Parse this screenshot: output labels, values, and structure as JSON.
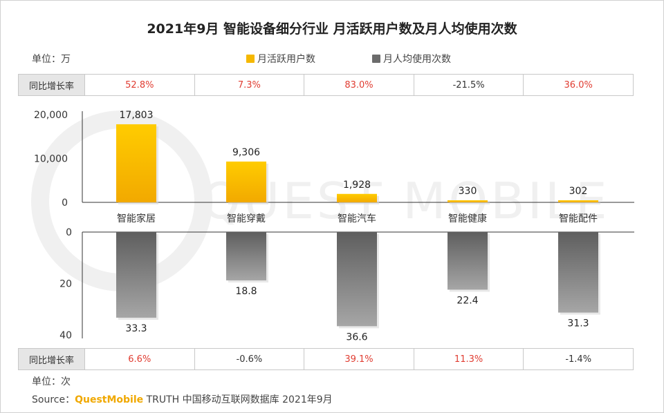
{
  "title": "2021年9月 智能设备细分行业 月活跃用户数及月人均使用次数",
  "unit_top": "单位：万",
  "unit_bottom": "单位：次",
  "legend": {
    "mau": "月活跃用户数",
    "usage": "月人均使用次数"
  },
  "yoy_label": "同比增长率",
  "yoy_top": [
    "52.8%",
    "7.3%",
    "83.0%",
    "-21.5%",
    "36.0%"
  ],
  "yoy_bottom": [
    "6.6%",
    "-0.6%",
    "39.1%",
    "11.3%",
    "-1.4%"
  ],
  "watermark": "QUEST MOBILE",
  "source": {
    "prefix": "Source：",
    "brand": "QuestMobile",
    "rest": " TRUTH 中国移动互联网数据库 2021年9月"
  },
  "colors": {
    "mau": "#f5b800",
    "usage": "#7a7a7a",
    "positive": "#e03c31",
    "negative": "#333333"
  },
  "chart_data": [
    {
      "type": "bar",
      "categories": [
        "智能家居",
        "智能穿戴",
        "智能汽车",
        "智能健康",
        "智能配件"
      ],
      "values": [
        17803,
        9306,
        1928,
        330,
        302
      ],
      "value_labels": [
        "17,803",
        "9,306",
        "1,928",
        "330",
        "302"
      ],
      "yticks": [
        "20,000",
        "10,000",
        "0"
      ],
      "ylim": [
        0,
        20000
      ]
    },
    {
      "type": "bar",
      "categories": [
        "智能家居",
        "智能穿戴",
        "智能汽车",
        "智能健康",
        "智能配件"
      ],
      "values": [
        33.3,
        18.8,
        36.6,
        22.4,
        31.3
      ],
      "value_labels": [
        "33.3",
        "18.8",
        "36.6",
        "22.4",
        "31.3"
      ],
      "yticks": [
        "0",
        "20",
        "40"
      ],
      "ylim": [
        0,
        40
      ],
      "inverted": true
    }
  ]
}
